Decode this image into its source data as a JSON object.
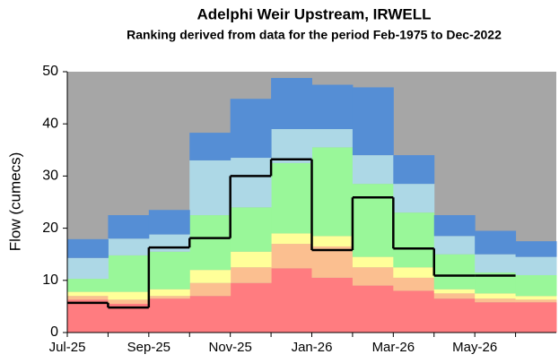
{
  "chart_data": {
    "type": "stacked-step-area",
    "title": "Adelphi Weir Upstream, IRWELL",
    "subtitle": "Ranking derived from data for the period Feb-1975 to Dec-2022",
    "y_label": "Flow (cumecs)",
    "categories": [
      "Jul-25",
      null,
      "Sep-25",
      null,
      "Nov-25",
      null,
      "Jan-26",
      null,
      "Mar-26",
      null,
      "May-26",
      null
    ],
    "ylim": [
      0,
      50
    ],
    "yticks": [
      0,
      10,
      20,
      30,
      40,
      50
    ],
    "background_color": "#a6a6a6",
    "series": [
      {
        "color": "#ff7c80",
        "values": [
          6.3,
          5.5,
          6.5,
          7.0,
          9.5,
          12.3,
          10.5,
          9.0,
          8.0,
          6.5,
          5.8,
          5.8
        ]
      },
      {
        "color": "#fbbf90",
        "values": [
          0.7,
          0.8,
          0.5,
          2.5,
          3.0,
          4.7,
          6.0,
          3.5,
          2.5,
          1.0,
          0.7,
          0.5
        ]
      },
      {
        "color": "#ffff99",
        "values": [
          0.8,
          1.5,
          1.3,
          2.5,
          3.0,
          2.0,
          2.0,
          2.0,
          2.0,
          0.8,
          1.0,
          0.7
        ]
      },
      {
        "color": "#99f799",
        "values": [
          2.5,
          7.0,
          7.2,
          10.5,
          8.5,
          13.5,
          17.0,
          14.0,
          10.5,
          6.7,
          4.0,
          4.0
        ]
      },
      {
        "color": "#add8e6",
        "values": [
          4.0,
          3.2,
          3.3,
          10.5,
          9.5,
          6.5,
          3.5,
          5.5,
          5.5,
          3.5,
          3.5,
          3.5
        ]
      },
      {
        "color": "#558ed5",
        "values": [
          3.6,
          4.5,
          4.7,
          5.3,
          11.3,
          9.8,
          8.5,
          13.0,
          5.5,
          4.0,
          4.5,
          3.0
        ]
      }
    ],
    "line": {
      "color": "#000000",
      "values": [
        5.7,
        4.8,
        16.3,
        18.1,
        30.0,
        33.2,
        15.8,
        25.9,
        16.1,
        10.9,
        10.9,
        null
      ]
    }
  }
}
